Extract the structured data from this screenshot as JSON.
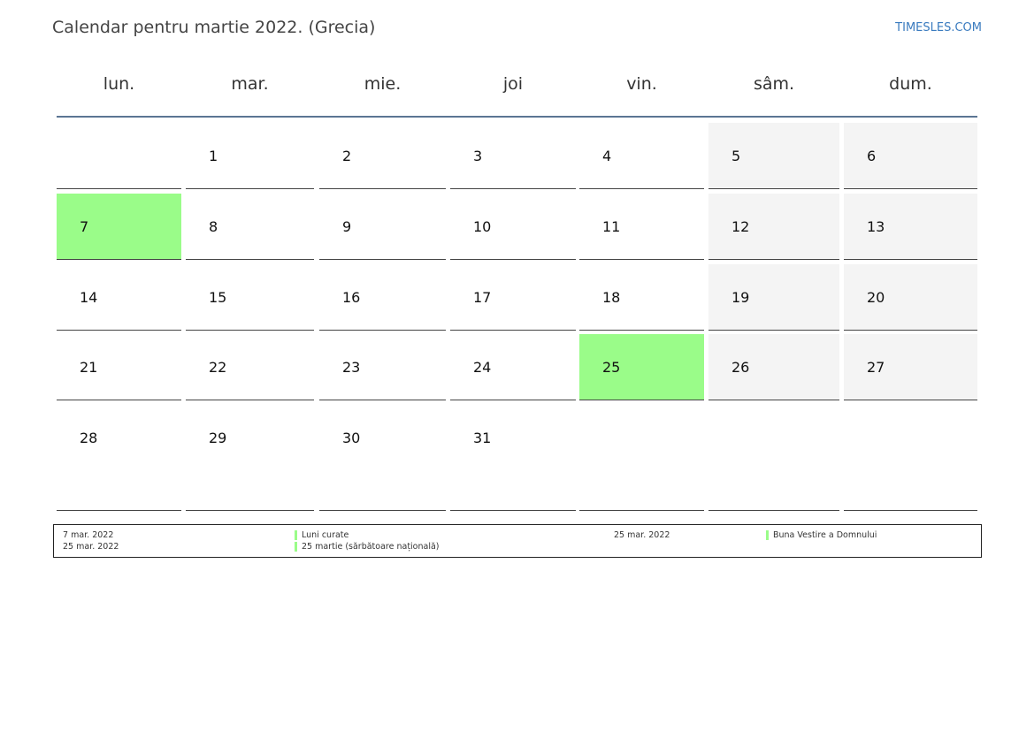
{
  "header": {
    "title": "Calendar pentru martie 2022. (Grecia)",
    "site": "TIMESLES.COM"
  },
  "weekdays": [
    "lun.",
    "mar.",
    "mie.",
    "joi",
    "vin.",
    "sâm.",
    "dum."
  ],
  "weeks": [
    [
      "",
      "1",
      "2",
      "3",
      "4",
      "5",
      "6"
    ],
    [
      "7",
      "8",
      "9",
      "10",
      "11",
      "12",
      "13"
    ],
    [
      "14",
      "15",
      "16",
      "17",
      "18",
      "19",
      "20"
    ],
    [
      "21",
      "22",
      "23",
      "24",
      "25",
      "26",
      "27"
    ],
    [
      "28",
      "29",
      "30",
      "31",
      "",
      "",
      ""
    ]
  ],
  "holiday_days": [
    "7",
    "25"
  ],
  "colors": {
    "holiday": "#9afc89",
    "weekend": "#f4f4f4",
    "header_rule": "#5b7593",
    "site_link": "#3a7bbf"
  },
  "legend": {
    "left": [
      {
        "date": "7 mar. 2022",
        "name": "Luni curate"
      },
      {
        "date": "25 mar. 2022",
        "name": "25 martie (sărbătoare națională)"
      }
    ],
    "right": [
      {
        "date": "25 mar. 2022",
        "name": "Buna Vestire a Domnului"
      }
    ]
  }
}
